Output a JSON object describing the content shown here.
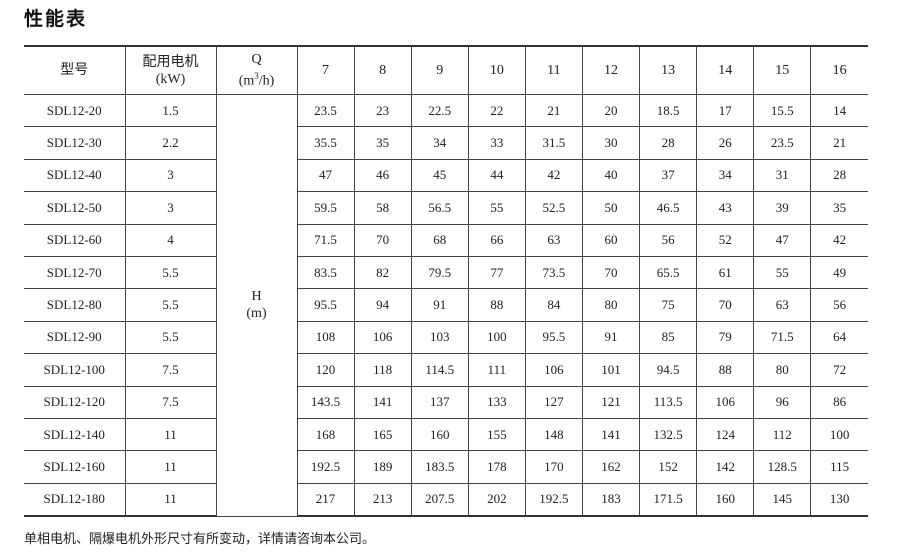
{
  "title": "性能表",
  "table": {
    "headers": {
      "model": "型号",
      "motor": "配用电机",
      "motor_unit": "(kW)",
      "q": "Q",
      "q_unit_pre": "(m",
      "q_unit_sup": "3",
      "q_unit_post": "/h)",
      "h": "H",
      "h_unit": "(m)",
      "flows": [
        "7",
        "8",
        "9",
        "10",
        "11",
        "12",
        "13",
        "14",
        "15",
        "16"
      ]
    },
    "rows": [
      {
        "model": "SDL12-20",
        "kw": "1.5",
        "heads": [
          "23.5",
          "23",
          "22.5",
          "22",
          "21",
          "20",
          "18.5",
          "17",
          "15.5",
          "14"
        ]
      },
      {
        "model": "SDL12-30",
        "kw": "2.2",
        "heads": [
          "35.5",
          "35",
          "34",
          "33",
          "31.5",
          "30",
          "28",
          "26",
          "23.5",
          "21"
        ]
      },
      {
        "model": "SDL12-40",
        "kw": "3",
        "heads": [
          "47",
          "46",
          "45",
          "44",
          "42",
          "40",
          "37",
          "34",
          "31",
          "28"
        ]
      },
      {
        "model": "SDL12-50",
        "kw": "3",
        "heads": [
          "59.5",
          "58",
          "56.5",
          "55",
          "52.5",
          "50",
          "46.5",
          "43",
          "39",
          "35"
        ]
      },
      {
        "model": "SDL12-60",
        "kw": "4",
        "heads": [
          "71.5",
          "70",
          "68",
          "66",
          "63",
          "60",
          "56",
          "52",
          "47",
          "42"
        ]
      },
      {
        "model": "SDL12-70",
        "kw": "5.5",
        "heads": [
          "83.5",
          "82",
          "79.5",
          "77",
          "73.5",
          "70",
          "65.5",
          "61",
          "55",
          "49"
        ]
      },
      {
        "model": "SDL12-80",
        "kw": "5.5",
        "heads": [
          "95.5",
          "94",
          "91",
          "88",
          "84",
          "80",
          "75",
          "70",
          "63",
          "56"
        ]
      },
      {
        "model": "SDL12-90",
        "kw": "5.5",
        "heads": [
          "108",
          "106",
          "103",
          "100",
          "95.5",
          "91",
          "85",
          "79",
          "71.5",
          "64"
        ]
      },
      {
        "model": "SDL12-100",
        "kw": "7.5",
        "heads": [
          "120",
          "118",
          "114.5",
          "111",
          "106",
          "101",
          "94.5",
          "88",
          "80",
          "72"
        ]
      },
      {
        "model": "SDL12-120",
        "kw": "7.5",
        "heads": [
          "143.5",
          "141",
          "137",
          "133",
          "127",
          "121",
          "113.5",
          "106",
          "96",
          "86"
        ]
      },
      {
        "model": "SDL12-140",
        "kw": "11",
        "heads": [
          "168",
          "165",
          "160",
          "155",
          "148",
          "141",
          "132.5",
          "124",
          "112",
          "100"
        ]
      },
      {
        "model": "SDL12-160",
        "kw": "11",
        "heads": [
          "192.5",
          "189",
          "183.5",
          "178",
          "170",
          "162",
          "152",
          "142",
          "128.5",
          "115"
        ]
      },
      {
        "model": "SDL12-180",
        "kw": "11",
        "heads": [
          "217",
          "213",
          "207.5",
          "202",
          "192.5",
          "183",
          "171.5",
          "160",
          "145",
          "130"
        ]
      }
    ]
  },
  "note": "单相电机、隔爆电机外形尺寸有所变动，详情请咨询本公司。"
}
